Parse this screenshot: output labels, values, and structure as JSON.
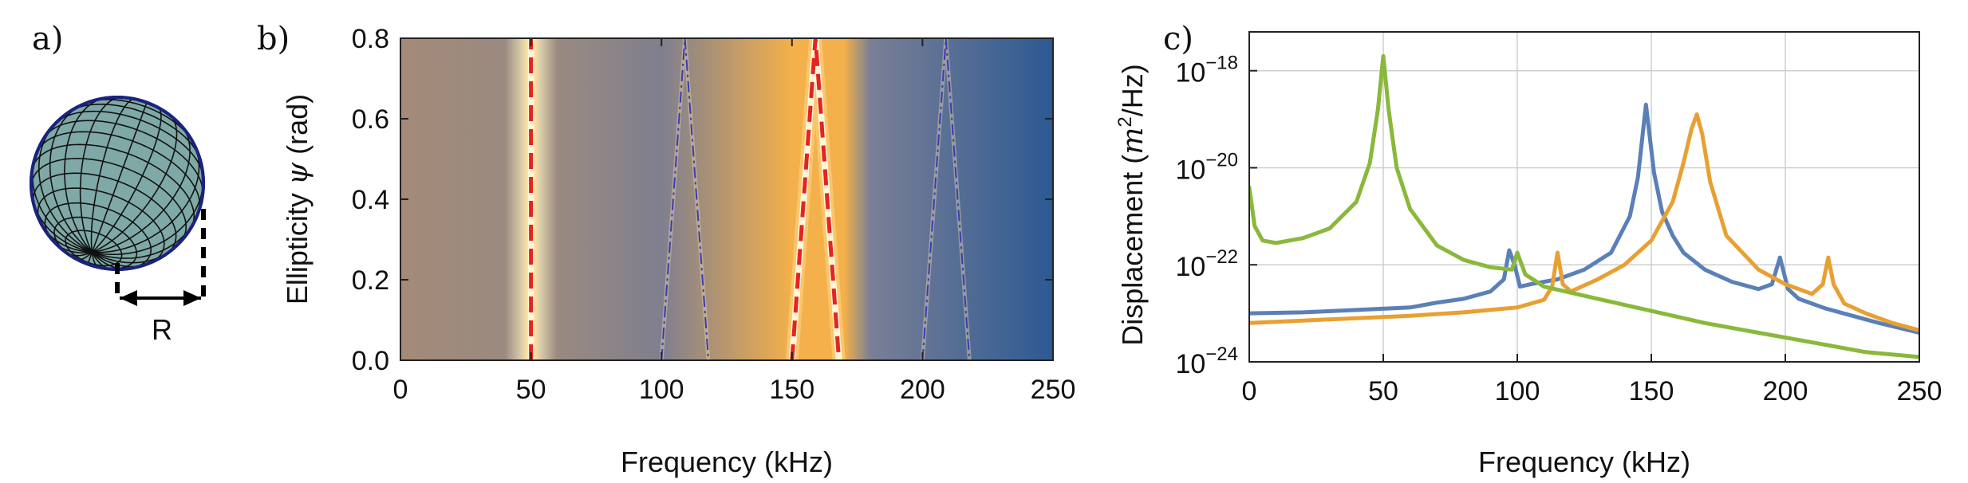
{
  "panel_labels": [
    "a)",
    "b)",
    "c)"
  ],
  "sphere": {
    "radius_label": "R",
    "fill": "#7fa9a6",
    "outline": "#1a237e"
  },
  "chart_data": [
    {
      "type": "heatmap",
      "panel": "b)",
      "xlabel": "Frequency (kHz)",
      "ylabel_prefix": "Ellipticity ",
      "ylabel_symbol": "ψ",
      "ylabel_suffix": " (rad)",
      "xlim": [
        0,
        250
      ],
      "ylim": [
        0,
        0.8
      ],
      "x_ticks": [
        "0",
        "50",
        "100",
        "150",
        "200",
        "250"
      ],
      "x_tick_values": [
        0,
        50,
        100,
        150,
        200,
        250
      ],
      "y_ticks": [
        "0.0",
        "0.2",
        "0.4",
        "0.6",
        "0.8"
      ],
      "y_tick_values": [
        0,
        0.2,
        0.4,
        0.6,
        0.8
      ],
      "background_gradient": [
        {
          "x": 0,
          "color": "#a48a78"
        },
        {
          "x": 40,
          "color": "#9a8a80"
        },
        {
          "x": 50,
          "color": "#fff2c0"
        },
        {
          "x": 60,
          "color": "#9a8a80"
        },
        {
          "x": 100,
          "color": "#7f7f8f"
        },
        {
          "x": 150,
          "color": "#f4b04a"
        },
        {
          "x": 170,
          "color": "#f4b04a"
        },
        {
          "x": 180,
          "color": "#7a7f96"
        },
        {
          "x": 250,
          "color": "#2c5a93"
        }
      ],
      "resonance_lines": [
        {
          "name": "",
          "color": "#e52421",
          "style": "dashed",
          "x": [
            50,
            50
          ],
          "y": [
            0,
            0.8
          ]
        },
        {
          "name": "",
          "color": "#e52421",
          "style": "dashed",
          "x": [
            150,
            159,
            168
          ],
          "y": [
            0,
            0.8,
            0
          ]
        },
        {
          "name": "",
          "color": "#3a3ab0",
          "style": "dashdot",
          "x": [
            100,
            109,
            118
          ],
          "y": [
            0,
            0.8,
            0
          ]
        },
        {
          "name": "",
          "color": "#3a3ab0",
          "style": "dashdot",
          "x": [
            200,
            209,
            218
          ],
          "y": [
            0,
            0.8,
            0
          ]
        }
      ]
    },
    {
      "type": "line",
      "panel": "c)",
      "xlabel": "Frequency (kHz)",
      "ylabel_prefix": "Displacement (",
      "ylabel_var": "m",
      "ylabel_exp": "2",
      "ylabel_suffix": "/Hz)",
      "xlim": [
        0,
        250
      ],
      "ylog": true,
      "ylim_exp": [
        -24,
        -17.2
      ],
      "x_ticks": [
        "0",
        "50",
        "100",
        "150",
        "200",
        "250"
      ],
      "x_tick_values": [
        0,
        50,
        100,
        150,
        200,
        250
      ],
      "y_tick_base": "10",
      "y_tick_exps": [
        "−18",
        "−20",
        "−22",
        "−24"
      ],
      "y_tick_values": [
        -18,
        -20,
        -22,
        -24
      ],
      "grid": true,
      "series": [
        {
          "name": "",
          "color": "#5b7fb7",
          "x": [
            0,
            20,
            40,
            60,
            70,
            80,
            90,
            95,
            97,
            99,
            101,
            105,
            115,
            125,
            135,
            142,
            145,
            148,
            151,
            154,
            158,
            162,
            170,
            180,
            190,
            195,
            198,
            201,
            205,
            215,
            225,
            235,
            250
          ],
          "log_y": [
            -23.0,
            -22.98,
            -22.93,
            -22.88,
            -22.78,
            -22.7,
            -22.55,
            -22.3,
            -21.7,
            -22.0,
            -22.45,
            -22.4,
            -22.3,
            -22.1,
            -21.75,
            -21.0,
            -20.2,
            -18.7,
            -20.1,
            -20.9,
            -21.4,
            -21.75,
            -22.1,
            -22.35,
            -22.5,
            -22.4,
            -21.85,
            -22.5,
            -22.7,
            -22.9,
            -23.05,
            -23.2,
            -23.4
          ]
        },
        {
          "name": "",
          "color": "#e8a033",
          "x": [
            0,
            20,
            40,
            60,
            80,
            100,
            110,
            113,
            115,
            117,
            120,
            130,
            140,
            150,
            158,
            162,
            165,
            167,
            169,
            172,
            178,
            190,
            200,
            210,
            214,
            216,
            218,
            222,
            230,
            240,
            250
          ],
          "log_y": [
            -23.2,
            -23.15,
            -23.1,
            -23.05,
            -22.98,
            -22.88,
            -22.72,
            -22.45,
            -21.75,
            -22.4,
            -22.55,
            -22.3,
            -22.0,
            -21.5,
            -20.7,
            -19.9,
            -19.2,
            -18.9,
            -19.3,
            -20.3,
            -21.4,
            -22.1,
            -22.4,
            -22.6,
            -22.4,
            -21.85,
            -22.4,
            -22.8,
            -23.0,
            -23.2,
            -23.35
          ]
        },
        {
          "name": "",
          "color": "#8ab83b",
          "x": [
            0,
            2,
            5,
            10,
            20,
            30,
            40,
            45,
            48,
            50,
            52,
            55,
            60,
            70,
            80,
            90,
            98,
            100,
            103,
            110,
            130,
            150,
            170,
            190,
            210,
            230,
            250
          ],
          "log_y": [
            -20.4,
            -21.2,
            -21.5,
            -21.55,
            -21.45,
            -21.25,
            -20.7,
            -19.9,
            -18.8,
            -17.7,
            -18.8,
            -20.0,
            -20.85,
            -21.6,
            -21.9,
            -22.05,
            -22.1,
            -21.75,
            -22.2,
            -22.45,
            -22.7,
            -22.95,
            -23.2,
            -23.4,
            -23.6,
            -23.8,
            -23.9
          ]
        }
      ]
    }
  ]
}
